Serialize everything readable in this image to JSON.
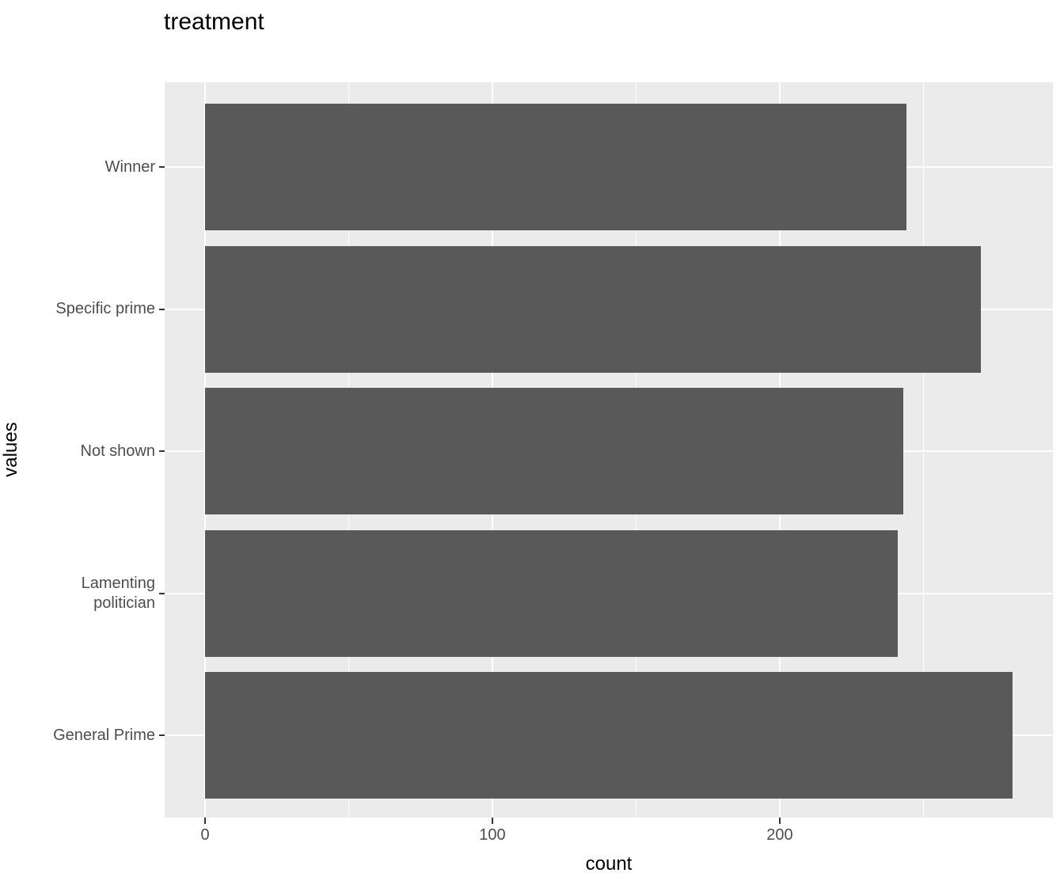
{
  "chart_data": {
    "type": "bar",
    "orientation": "horizontal",
    "title": "treatment",
    "xlabel": "count",
    "ylabel": "values",
    "categories": [
      "Winner",
      "Specific prime",
      "Not shown",
      "Lamenting politician",
      "General Prime"
    ],
    "category_labels": [
      "Winner",
      "Specific prime",
      "Not shown",
      "Lamenting\npolitician",
      "General Prime"
    ],
    "values": [
      244,
      270,
      243,
      241,
      281
    ],
    "x_major_ticks": [
      0,
      100,
      200
    ],
    "x_tick_labels": [
      "0",
      "100",
      "200"
    ],
    "x_minor_ticks": [
      50,
      150,
      250
    ],
    "xlim": [
      -14.05,
      295.05
    ],
    "legend": "none",
    "grid": "on",
    "colors": {
      "bar_fill": "#595959",
      "panel_background": "#EBEBEB",
      "gridline": "#FFFFFF",
      "axis_text": "#4D4D4D",
      "tick_mark": "#333333",
      "title_text": "#000000"
    }
  }
}
